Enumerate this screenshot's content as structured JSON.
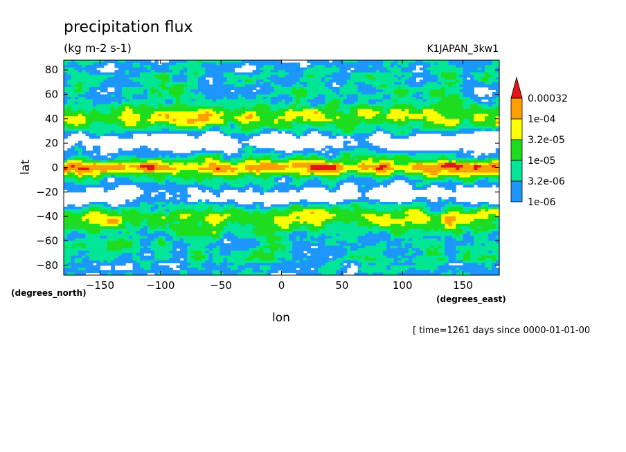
{
  "chart_data": {
    "type": "heatmap",
    "title": "precipitation flux",
    "units": "(kg m-2 s-1)",
    "run_label": "K1JAPAN_3kw1",
    "xlabel": "lon",
    "ylabel": "lat",
    "x_units": "(degrees_east)",
    "y_units": "(degrees_north)",
    "time_label": "[ time=1261 days since 0000-01-01-00",
    "xlim": [
      -180,
      180
    ],
    "ylim": [
      -88,
      88
    ],
    "x_ticks": [
      -150,
      -100,
      -50,
      0,
      50,
      100,
      150
    ],
    "y_ticks": [
      -80,
      -60,
      -40,
      -20,
      0,
      20,
      40,
      60,
      80
    ],
    "legend": {
      "placement": "right",
      "levels": [
        "1e-06",
        "3.2e-06",
        "1e-05",
        "3.2e-05",
        "1e-04",
        "0.00032"
      ],
      "colors": [
        "#1e96ff",
        "#00e696",
        "#1edc1e",
        "#ffff00",
        "#ffa000",
        "#e61414"
      ]
    },
    "grid": false
  }
}
